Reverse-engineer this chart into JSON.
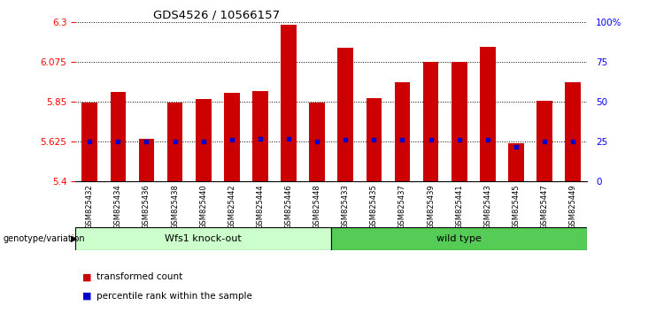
{
  "title": "GDS4526 / 10566157",
  "samples": [
    "GSM825432",
    "GSM825434",
    "GSM825436",
    "GSM825438",
    "GSM825440",
    "GSM825442",
    "GSM825444",
    "GSM825446",
    "GSM825448",
    "GSM825433",
    "GSM825435",
    "GSM825437",
    "GSM825439",
    "GSM825441",
    "GSM825443",
    "GSM825445",
    "GSM825447",
    "GSM825449"
  ],
  "red_values": [
    5.845,
    5.905,
    5.64,
    5.845,
    5.865,
    5.9,
    5.91,
    6.285,
    5.845,
    6.155,
    5.87,
    5.96,
    6.075,
    6.075,
    6.16,
    5.615,
    5.855,
    5.96
  ],
  "blue_values": [
    5.625,
    5.625,
    5.625,
    5.625,
    5.625,
    5.635,
    5.64,
    5.64,
    5.625,
    5.637,
    5.637,
    5.637,
    5.637,
    5.637,
    5.637,
    5.595,
    5.625,
    5.625
  ],
  "group1_count": 9,
  "group2_count": 9,
  "group1_label": "Wfs1 knock-out",
  "group2_label": "wild type",
  "group1_color": "#ccffcc",
  "group2_color": "#55cc55",
  "ymin": 5.4,
  "ymax": 6.3,
  "yticks": [
    5.4,
    5.625,
    5.85,
    6.075,
    6.3
  ],
  "ytick_labels": [
    "5.4",
    "5.625",
    "5.85",
    "6.075",
    "6.3"
  ],
  "right_yticks": [
    0,
    25,
    50,
    75,
    100
  ],
  "right_ytick_labels": [
    "0",
    "25",
    "50",
    "75",
    "100%"
  ],
  "bar_color": "#cc0000",
  "dot_color": "#0000cc",
  "xlabel_group": "genotype/variation",
  "legend_red": "transformed count",
  "legend_blue": "percentile rank within the sample",
  "bar_width": 0.55
}
